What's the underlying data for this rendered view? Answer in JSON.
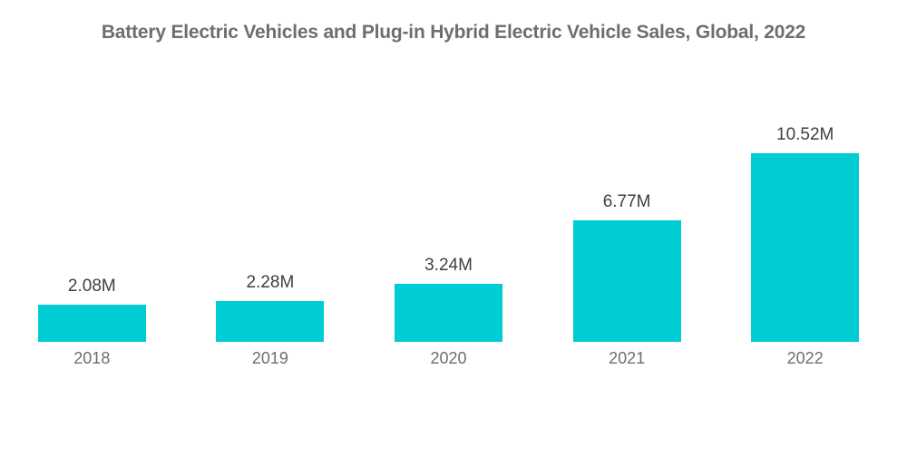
{
  "title": "Battery Electric Vehicles and Plug-in Hybrid Electric Vehicle Sales, Global, 2022",
  "chart_data": {
    "type": "bar",
    "title": "Battery Electric Vehicles and Plug-in Hybrid Electric Vehicle Sales, Global, 2022",
    "categories": [
      "2018",
      "2019",
      "2020",
      "2021",
      "2022"
    ],
    "values": [
      2.08,
      2.28,
      3.24,
      6.77,
      10.52
    ],
    "value_labels": [
      "2.08M",
      "2.28M",
      "3.24M",
      "6.77M",
      "10.52M"
    ],
    "unit": "M",
    "xlabel": "",
    "ylabel": "",
    "ylim": [
      0,
      10.52
    ],
    "grid": false,
    "legend": false,
    "data_labels_position": "above-bars"
  },
  "colors": {
    "bar": "#00CCD4",
    "title_text": "#6D6E71",
    "value_label_text": "#404041",
    "axis_label_text": "#6D6E71",
    "background": "#FFFFFF"
  }
}
